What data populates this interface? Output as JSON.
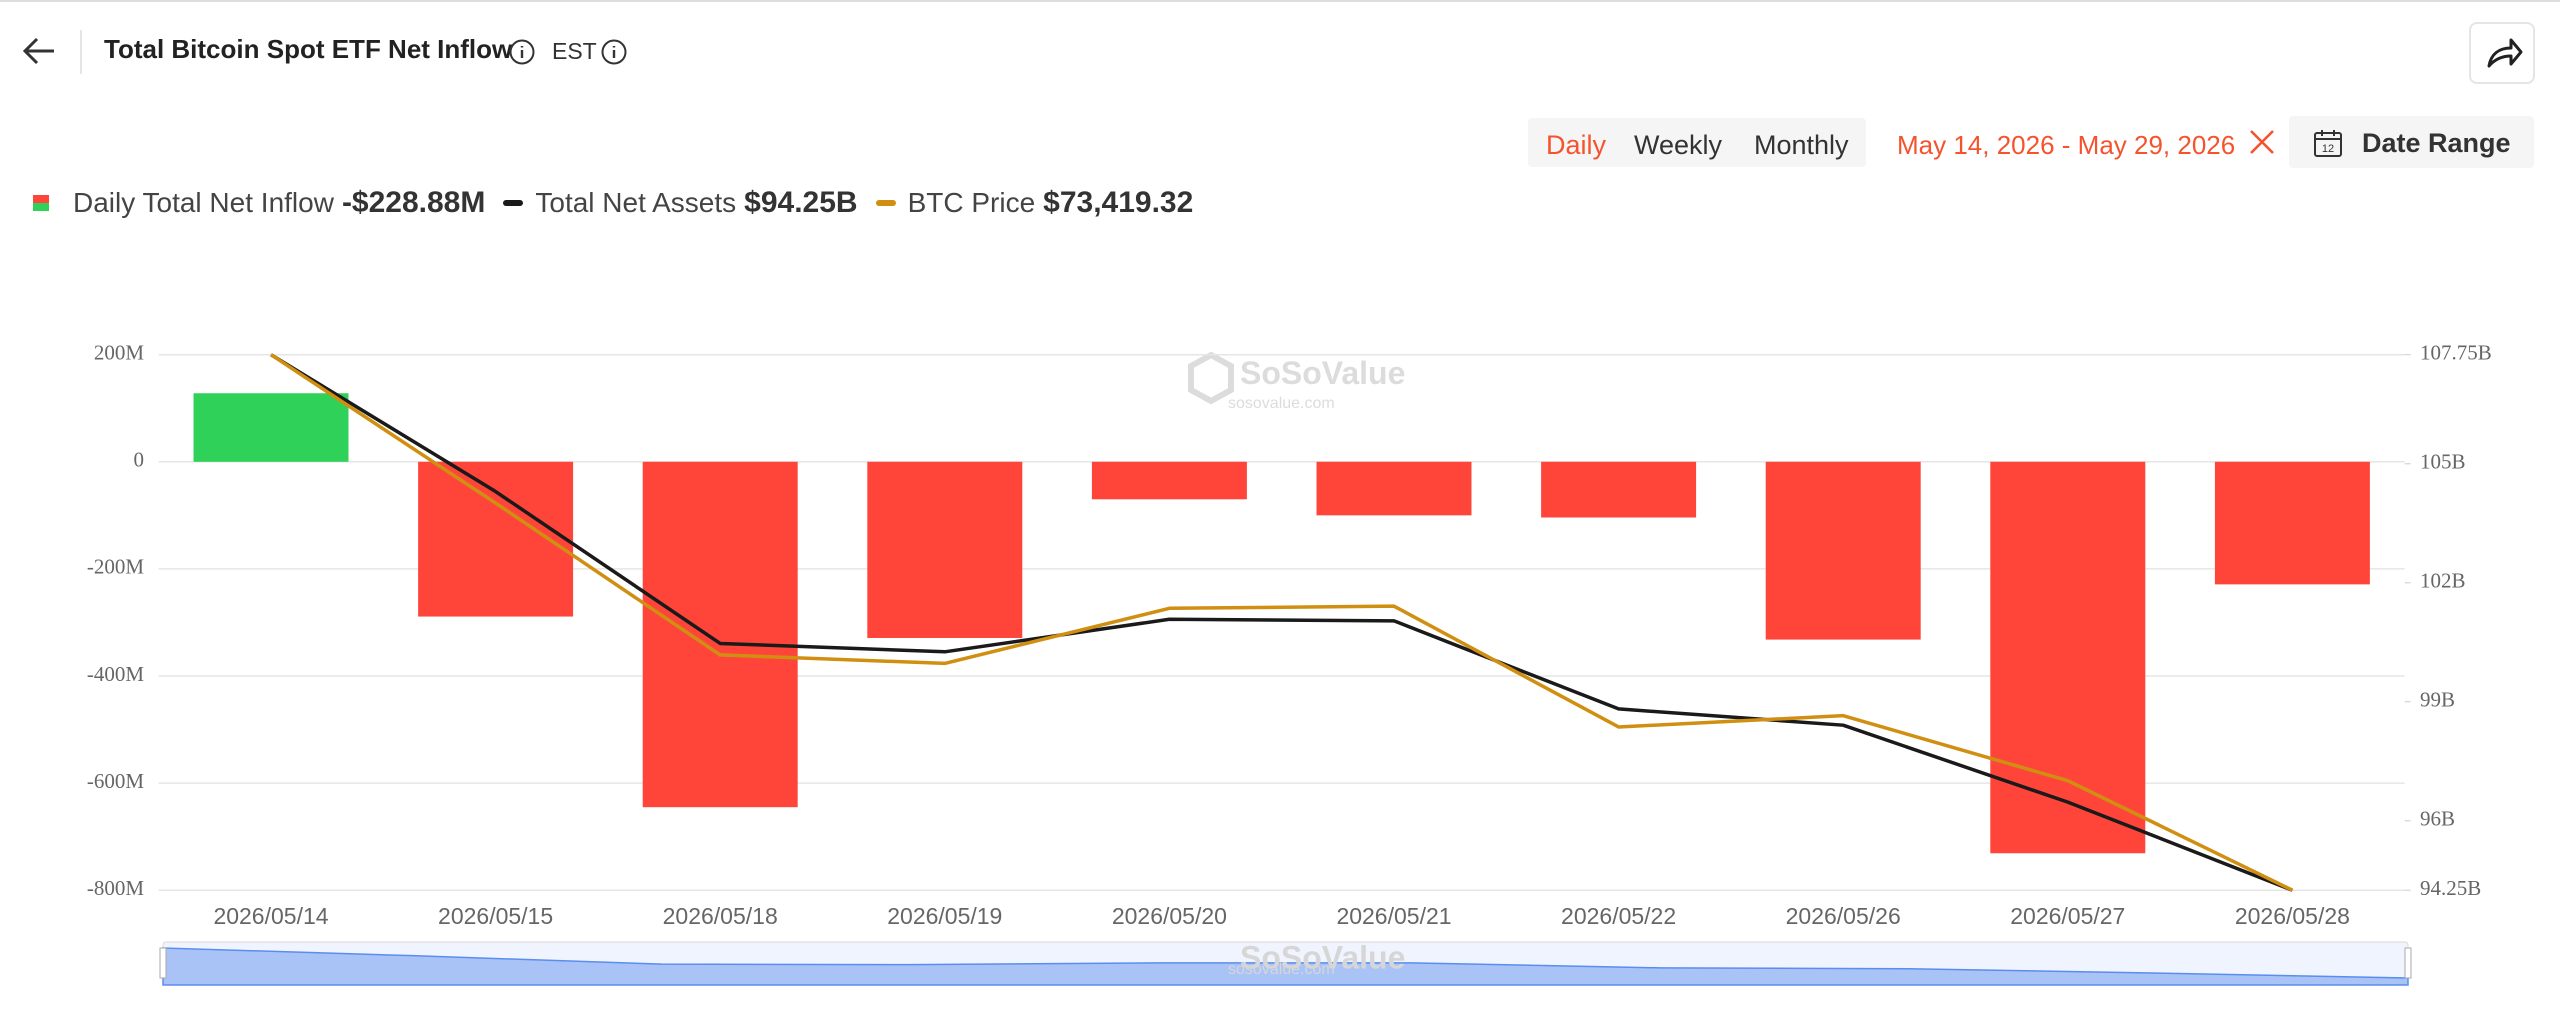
{
  "header": {
    "title": "Total Bitcoin Spot ETF Net Inflow",
    "timezone": "EST",
    "periods": [
      "Daily",
      "Weekly",
      "Monthly"
    ],
    "date_range": "May 14, 2026 - May 29, 2026",
    "date_range_button": "Date Range"
  },
  "chart_data": {
    "type": "bar",
    "watermark": "SoSoValue",
    "watermark_url": "sosovalue.com",
    "categories": [
      "2026/05/14",
      "2026/05/15",
      "2026/05/18",
      "2026/05/19",
      "2026/05/20",
      "2026/05/21",
      "2026/05/22",
      "2026/05/26",
      "2026/05/27",
      "2026/05/28"
    ],
    "series": [
      {
        "name": "Daily Total Net Inflow",
        "type": "bar",
        "color": "#ff453a",
        "positive_color": "#30d158",
        "legend_value": "-$228.88M",
        "values": [
          128000000,
          -289000000,
          -645000000,
          -329000000,
          -70000000,
          -100000000,
          -104000000,
          -332000000,
          -731000000,
          -228880000
        ]
      },
      {
        "name": "Total Net Assets",
        "type": "line",
        "axis": "y2",
        "color": "#1a1a1a",
        "legend_value": "$94.25B",
        "values": [
          107750000000,
          104300000000,
          100470000000,
          100260000000,
          101080000000,
          101040000000,
          98820000000,
          98410000000,
          96470000000,
          94250000000
        ]
      },
      {
        "name": "BTC Price",
        "type": "line",
        "axis": "none",
        "color": "#d18f12",
        "legend_value": "$73,419.32",
        "values": [
          81000,
          78900,
          76750,
          76630,
          77410,
          77440,
          75730,
          75890,
          74970,
          73419.32
        ]
      }
    ],
    "ylim": [
      -800000000,
      200000000
    ],
    "yticks": [
      {
        "value": 200000000,
        "label": "200M"
      },
      0,
      {
        "value": -200000000,
        "label": "-200M"
      },
      {
        "value": -400000000,
        "label": "-400M"
      },
      {
        "value": -600000000,
        "label": "-600M"
      },
      {
        "value": -800000000,
        "label": "-800M"
      }
    ],
    "y2lim": [
      94250000000,
      107750000000
    ],
    "y2ticks": [
      {
        "value": 107750000000,
        "label": "107.75B"
      },
      {
        "value": 105000000000,
        "label": "105B"
      },
      {
        "value": 102000000000,
        "label": "102B"
      },
      {
        "value": 99000000000,
        "label": "99B"
      },
      {
        "value": 96000000000,
        "label": "96B"
      },
      {
        "value": 94250000000,
        "label": "94.25B"
      }
    ],
    "grid": true
  }
}
